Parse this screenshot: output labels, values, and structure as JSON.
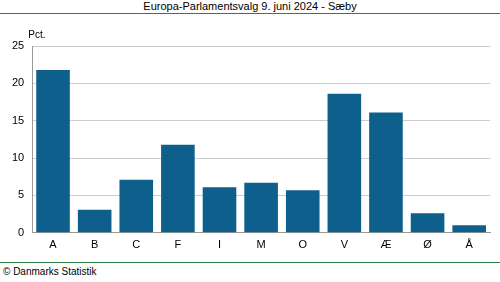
{
  "chart_data": {
    "type": "bar",
    "title": "Europa-Parlamentsvalg 9. juni 2024 - Sæby",
    "ylabel": "Pct.",
    "source": "© Danmarks Statistik",
    "categories": [
      "A",
      "B",
      "C",
      "F",
      "I",
      "M",
      "O",
      "V",
      "Æ",
      "Ø",
      "Å"
    ],
    "values": [
      21.8,
      3.1,
      7.1,
      11.8,
      6.1,
      6.7,
      5.7,
      18.6,
      16.1,
      2.6,
      1.0
    ],
    "color": "#0f5f8c",
    "ylim": [
      0,
      25
    ],
    "yticks": [
      0,
      5,
      10,
      15,
      20,
      25
    ],
    "grid": true
  }
}
